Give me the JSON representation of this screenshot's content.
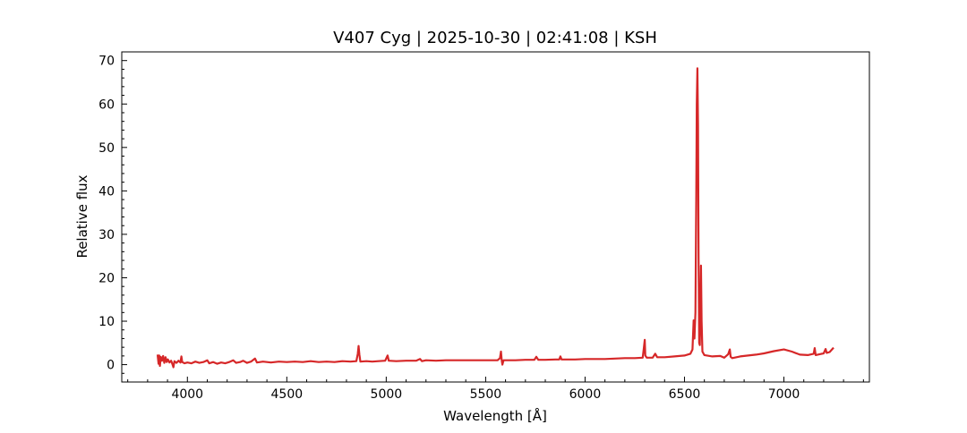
{
  "chart_data": {
    "type": "line",
    "title": "V407 Cyg | 2025-10-30 | 02:41:08 | KSH",
    "xlabel": "Wavelength [Å]",
    "ylabel": "Relative flux",
    "xlim": [
      3670,
      7430
    ],
    "ylim": [
      -4,
      72
    ],
    "xticks": [
      4000,
      4500,
      5000,
      5500,
      6000,
      6500,
      7000
    ],
    "yticks": [
      0,
      10,
      20,
      30,
      40,
      50,
      60,
      70
    ],
    "grid": false,
    "line_color": "#d62728",
    "series": [
      {
        "points": [
          [
            3850,
            2.3
          ],
          [
            3855,
            0.2
          ],
          [
            3858,
            2.1
          ],
          [
            3862,
            -0.3
          ],
          [
            3866,
            1.8
          ],
          [
            3872,
            0.9
          ],
          [
            3878,
            2.0
          ],
          [
            3884,
            0.4
          ],
          [
            3890,
            1.7
          ],
          [
            3896,
            0.6
          ],
          [
            3902,
            1.2
          ],
          [
            3910,
            0.5
          ],
          [
            3918,
            0.9
          ],
          [
            3925,
            0.1
          ],
          [
            3930,
            -0.6
          ],
          [
            3935,
            0.8
          ],
          [
            3945,
            0.4
          ],
          [
            3955,
            0.9
          ],
          [
            3965,
            0.5
          ],
          [
            3970,
            1.9
          ],
          [
            3974,
            0.6
          ],
          [
            3985,
            0.3
          ],
          [
            4000,
            0.5
          ],
          [
            4020,
            0.3
          ],
          [
            4040,
            0.7
          ],
          [
            4060,
            0.4
          ],
          [
            4080,
            0.6
          ],
          [
            4100,
            1.0
          ],
          [
            4110,
            0.3
          ],
          [
            4130,
            0.6
          ],
          [
            4150,
            0.2
          ],
          [
            4170,
            0.5
          ],
          [
            4190,
            0.3
          ],
          [
            4210,
            0.6
          ],
          [
            4230,
            1.0
          ],
          [
            4245,
            0.4
          ],
          [
            4265,
            0.6
          ],
          [
            4280,
            0.9
          ],
          [
            4300,
            0.4
          ],
          [
            4320,
            0.7
          ],
          [
            4340,
            1.4
          ],
          [
            4350,
            0.5
          ],
          [
            4380,
            0.7
          ],
          [
            4420,
            0.5
          ],
          [
            4460,
            0.7
          ],
          [
            4500,
            0.6
          ],
          [
            4540,
            0.7
          ],
          [
            4580,
            0.6
          ],
          [
            4620,
            0.8
          ],
          [
            4660,
            0.6
          ],
          [
            4700,
            0.7
          ],
          [
            4740,
            0.6
          ],
          [
            4780,
            0.8
          ],
          [
            4820,
            0.7
          ],
          [
            4850,
            0.8
          ],
          [
            4857,
            2.5
          ],
          [
            4861,
            4.3
          ],
          [
            4865,
            2.3
          ],
          [
            4870,
            0.7
          ],
          [
            4900,
            0.8
          ],
          [
            4930,
            0.7
          ],
          [
            4960,
            0.8
          ],
          [
            4995,
            0.9
          ],
          [
            5007,
            2.1
          ],
          [
            5013,
            0.9
          ],
          [
            5050,
            0.8
          ],
          [
            5100,
            0.9
          ],
          [
            5150,
            0.9
          ],
          [
            5170,
            1.3
          ],
          [
            5180,
            0.8
          ],
          [
            5200,
            1.0
          ],
          [
            5250,
            0.9
          ],
          [
            5300,
            1.0
          ],
          [
            5350,
            1.0
          ],
          [
            5400,
            1.0
          ],
          [
            5450,
            1.0
          ],
          [
            5500,
            1.0
          ],
          [
            5560,
            1.0
          ],
          [
            5572,
            1.5
          ],
          [
            5577,
            3.0
          ],
          [
            5581,
            0.9
          ],
          [
            5584,
            0.0
          ],
          [
            5590,
            1.0
          ],
          [
            5650,
            1.0
          ],
          [
            5700,
            1.1
          ],
          [
            5745,
            1.1
          ],
          [
            5755,
            1.8
          ],
          [
            5765,
            1.1
          ],
          [
            5800,
            1.1
          ],
          [
            5850,
            1.2
          ],
          [
            5870,
            1.2
          ],
          [
            5876,
            1.9
          ],
          [
            5882,
            1.2
          ],
          [
            5950,
            1.2
          ],
          [
            6000,
            1.3
          ],
          [
            6050,
            1.3
          ],
          [
            6100,
            1.3
          ],
          [
            6150,
            1.4
          ],
          [
            6200,
            1.5
          ],
          [
            6250,
            1.5
          ],
          [
            6290,
            1.6
          ],
          [
            6295,
            3.5
          ],
          [
            6300,
            5.7
          ],
          [
            6303,
            2.1
          ],
          [
            6310,
            1.6
          ],
          [
            6340,
            1.6
          ],
          [
            6353,
            2.5
          ],
          [
            6363,
            1.7
          ],
          [
            6400,
            1.7
          ],
          [
            6450,
            1.9
          ],
          [
            6500,
            2.1
          ],
          [
            6530,
            2.5
          ],
          [
            6540,
            3.5
          ],
          [
            6546,
            10.2
          ],
          [
            6550,
            6.0
          ],
          [
            6555,
            12.0
          ],
          [
            6559,
            38.0
          ],
          [
            6562,
            60.0
          ],
          [
            6565,
            68.2
          ],
          [
            6568,
            55.0
          ],
          [
            6571,
            25.0
          ],
          [
            6574,
            5.0
          ],
          [
            6577,
            4.5
          ],
          [
            6580,
            12.0
          ],
          [
            6583,
            22.8
          ],
          [
            6586,
            10.0
          ],
          [
            6590,
            3.0
          ],
          [
            6600,
            2.2
          ],
          [
            6640,
            1.9
          ],
          [
            6680,
            2.0
          ],
          [
            6700,
            1.6
          ],
          [
            6720,
            2.4
          ],
          [
            6728,
            3.5
          ],
          [
            6732,
            1.8
          ],
          [
            6740,
            1.5
          ],
          [
            6780,
            1.9
          ],
          [
            6820,
            2.1
          ],
          [
            6860,
            2.3
          ],
          [
            6900,
            2.6
          ],
          [
            6950,
            3.1
          ],
          [
            7000,
            3.5
          ],
          [
            7040,
            3.0
          ],
          [
            7080,
            2.3
          ],
          [
            7120,
            2.2
          ],
          [
            7150,
            2.5
          ],
          [
            7155,
            3.8
          ],
          [
            7160,
            2.2
          ],
          [
            7180,
            2.4
          ],
          [
            7200,
            2.6
          ],
          [
            7210,
            3.6
          ],
          [
            7215,
            2.7
          ],
          [
            7230,
            2.9
          ],
          [
            7250,
            3.9
          ]
        ]
      }
    ]
  }
}
